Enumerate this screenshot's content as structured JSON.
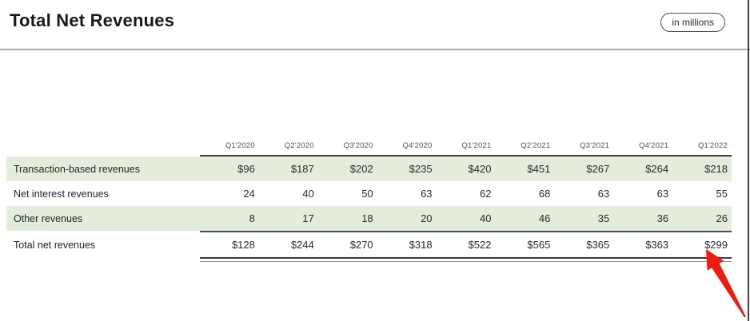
{
  "header": {
    "title": "Total Net Revenues",
    "badge": "in millions"
  },
  "table": {
    "columns": [
      "Q1'2020",
      "Q2'2020",
      "Q3'2020",
      "Q4'2020",
      "Q1'2021",
      "Q2'2021",
      "Q3'2021",
      "Q4'2021",
      "Q1'2022"
    ],
    "rows": [
      {
        "label": "Transaction-based revenues",
        "values": [
          "$96",
          "$187",
          "$202",
          "$235",
          "$420",
          "$451",
          "$267",
          "$264",
          "$218"
        ],
        "highlight": true,
        "total": false
      },
      {
        "label": "Net interest revenues",
        "values": [
          "24",
          "40",
          "50",
          "63",
          "62",
          "68",
          "63",
          "63",
          "55"
        ],
        "highlight": false,
        "total": false
      },
      {
        "label": "Other revenues",
        "values": [
          "8",
          "17",
          "18",
          "20",
          "40",
          "46",
          "35",
          "36",
          "26"
        ],
        "highlight": true,
        "total": false
      },
      {
        "label": "Total net revenues",
        "values": [
          "$128",
          "$244",
          "$270",
          "$318",
          "$522",
          "$565",
          "$365",
          "$363",
          "$299"
        ],
        "highlight": false,
        "total": true
      }
    ]
  },
  "chart_data": {
    "type": "table",
    "title": "Total Net Revenues",
    "unit_note": "in millions",
    "categories": [
      "Q1'2020",
      "Q2'2020",
      "Q3'2020",
      "Q4'2020",
      "Q1'2021",
      "Q2'2021",
      "Q3'2021",
      "Q4'2021",
      "Q1'2022"
    ],
    "series": [
      {
        "name": "Transaction-based revenues",
        "values": [
          96,
          187,
          202,
          235,
          420,
          451,
          267,
          264,
          218
        ]
      },
      {
        "name": "Net interest revenues",
        "values": [
          24,
          40,
          50,
          63,
          62,
          68,
          63,
          63,
          55
        ]
      },
      {
        "name": "Other revenues",
        "values": [
          8,
          17,
          18,
          20,
          40,
          46,
          35,
          36,
          26
        ]
      },
      {
        "name": "Total net revenues",
        "values": [
          128,
          244,
          270,
          318,
          522,
          565,
          365,
          363,
          299
        ]
      }
    ],
    "layout": {
      "highlighted_row_color": "#e4ecdc",
      "grid": "horizontal rules on header and total row"
    }
  },
  "annotation": {
    "arrow_target_value": "$299",
    "arrow_color": "#ee1c0f"
  },
  "colors": {
    "row_highlight": "#e4ecdc",
    "rule_dark": "#3c3e3f",
    "divider_gray": "#aaadad",
    "annotation_red": "#ee1c0f"
  }
}
